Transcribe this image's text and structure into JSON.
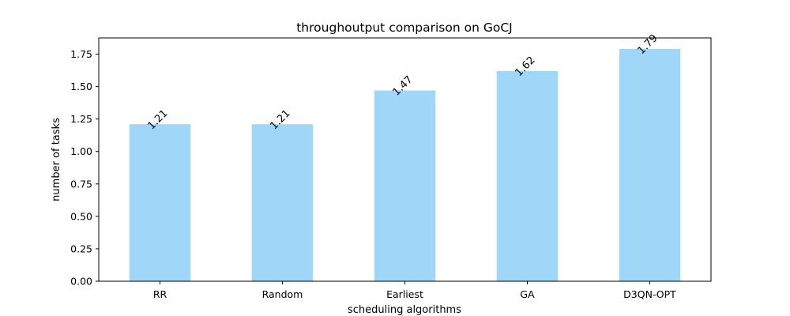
{
  "chart_data": {
    "type": "bar",
    "title": "throughoutput comparison on GoCJ",
    "xlabel": "scheduling algorithms",
    "ylabel": "number of tasks",
    "categories": [
      "RR",
      "Random",
      "Earliest",
      "GA",
      "D3QN-OPT"
    ],
    "values": [
      1.21,
      1.21,
      1.47,
      1.62,
      1.79
    ],
    "data_labels": [
      "1.21",
      "1.21",
      "1.47",
      "1.62",
      "1.79"
    ],
    "ylim": [
      0,
      1.875
    ],
    "yticks": [
      0.0,
      0.25,
      0.5,
      0.75,
      1.0,
      1.25,
      1.5,
      1.75
    ],
    "ytick_labels": [
      "0.00",
      "0.25",
      "0.50",
      "0.75",
      "1.00",
      "1.25",
      "1.50",
      "1.75"
    ],
    "bar_color": "#a0d6f8",
    "grid": false,
    "legend": "none"
  }
}
